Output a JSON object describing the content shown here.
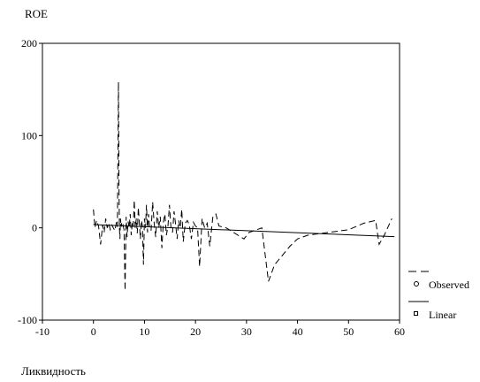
{
  "chart_data": {
    "type": "line",
    "ylabel": "ROE",
    "xlabel": "Ликвидность",
    "xlim": [
      -10,
      60
    ],
    "ylim": [
      -100,
      200
    ],
    "xticks": [
      -10,
      0,
      10,
      20,
      30,
      40,
      50,
      60
    ],
    "yticks": [
      -100,
      0,
      100,
      200
    ],
    "grid": false,
    "legend_position": "right",
    "legend": [
      "Observed",
      "Linear"
    ],
    "series": [
      {
        "name": "Observed",
        "style": "dashed",
        "x": [
          0.0,
          0.3,
          0.6,
          1.0,
          1.4,
          1.8,
          2.1,
          2.4,
          2.7,
          3.0,
          3.3,
          3.6,
          3.9,
          4.2,
          4.5,
          4.7,
          4.9,
          5.0,
          5.1,
          5.2,
          5.3,
          5.4,
          5.5,
          5.6,
          5.8,
          6.0,
          6.2,
          6.4,
          6.6,
          6.8,
          7.0,
          7.2,
          7.4,
          7.6,
          7.8,
          8.0,
          8.2,
          8.4,
          8.6,
          8.8,
          9.0,
          9.2,
          9.4,
          9.6,
          9.8,
          10.0,
          10.2,
          10.4,
          10.6,
          10.8,
          11.0,
          11.3,
          11.6,
          11.9,
          12.2,
          12.5,
          12.8,
          13.1,
          13.4,
          13.7,
          14.0,
          14.3,
          14.6,
          14.9,
          15.2,
          15.5,
          15.8,
          16.1,
          16.4,
          16.7,
          17.0,
          17.3,
          17.6,
          18.0,
          18.4,
          18.8,
          19.2,
          19.6,
          20.0,
          20.4,
          20.8,
          21.3,
          21.8,
          22.3,
          22.8,
          23.4,
          24.0,
          24.6,
          26.0,
          29.5,
          30.5,
          33.0,
          34.3,
          35.5,
          37.0,
          38.5,
          40.0,
          42.0,
          46.0,
          50.0,
          53.0,
          55.3,
          56.0,
          57.0,
          58.5
        ],
        "y": [
          20,
          0,
          8,
          2,
          -18,
          3,
          -5,
          10,
          0,
          5,
          -2,
          3,
          0,
          -3,
          6,
          1,
          158,
          45,
          0,
          -12,
          10,
          2,
          5,
          0,
          3,
          -2,
          -68,
          12,
          -10,
          7,
          0,
          15,
          -8,
          5,
          1,
          30,
          0,
          10,
          -6,
          22,
          4,
          -12,
          8,
          2,
          -40,
          10,
          0,
          25,
          -5,
          15,
          2,
          -3,
          28,
          5,
          -10,
          18,
          0,
          12,
          -22,
          6,
          15,
          -8,
          2,
          25,
          0,
          -5,
          18,
          4,
          -12,
          8,
          0,
          20,
          -15,
          5,
          8,
          3,
          -12,
          6,
          2,
          0,
          -42,
          10,
          0,
          5,
          -20,
          12,
          15,
          2,
          0,
          -12,
          -5,
          0,
          -58,
          -40,
          -30,
          -20,
          -12,
          -8,
          -5,
          -2,
          5,
          8,
          -18,
          -8,
          10
        ]
      },
      {
        "name": "Linear",
        "style": "solid",
        "x": [
          0,
          59
        ],
        "y": [
          3.5,
          -9.5
        ]
      }
    ]
  }
}
